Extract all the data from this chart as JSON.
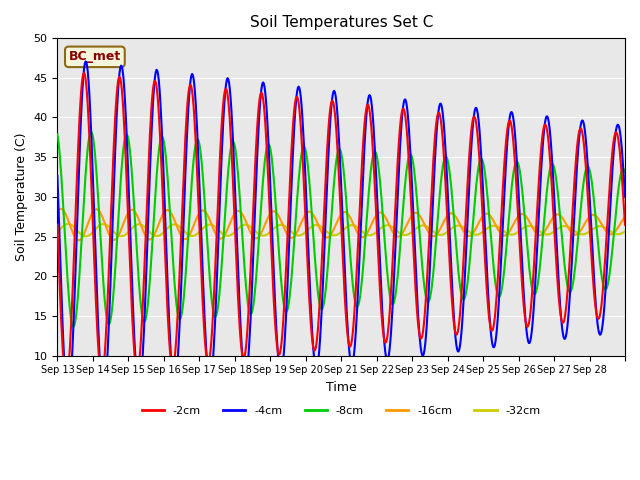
{
  "title": "Soil Temperatures Set C",
  "xlabel": "Time",
  "ylabel": "Soil Temperature (C)",
  "ylim": [
    10,
    50
  ],
  "annotation": "BC_met",
  "legend_labels": [
    "-2cm",
    "-4cm",
    "-8cm",
    "-16cm",
    "-32cm"
  ],
  "legend_colors": [
    "#ff0000",
    "#0000ff",
    "#00cc00",
    "#ff9900",
    "#cccc00"
  ],
  "line_widths": [
    1.5,
    1.5,
    1.5,
    1.5,
    1.5
  ],
  "background_color": "#e8e8e8",
  "xtick_labels": [
    "Sep 13",
    "Sep 14",
    "Sep 15",
    "Sep 16",
    "Sep 17",
    "Sep 18",
    "Sep 19",
    "Sep 20",
    "Sep 21",
    "Sep 22",
    "Sep 23",
    "Sep 24",
    "Sep 25",
    "Sep 26",
    "Sep 27",
    "Sep 28"
  ],
  "num_days": 16,
  "start_day": 13
}
